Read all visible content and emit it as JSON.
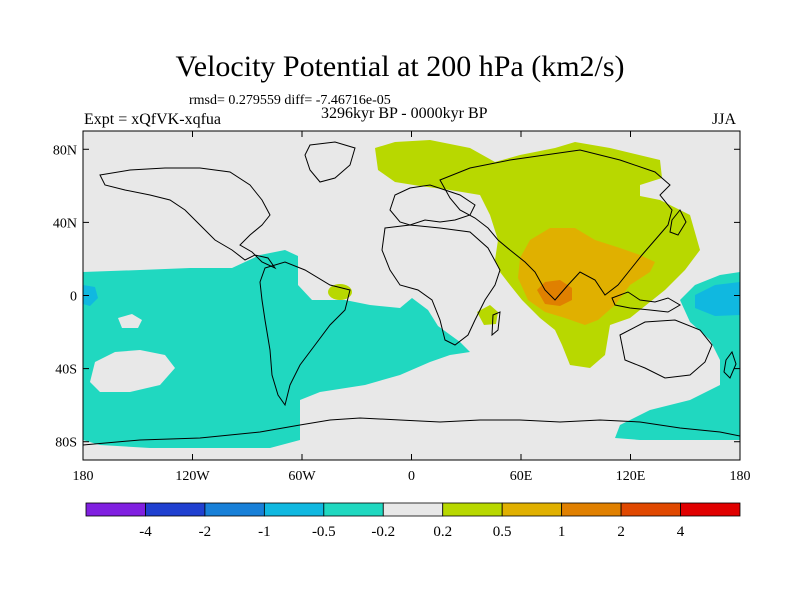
{
  "title": "Velocity Potential at 200 hPa (km2/s)",
  "stats": "rmsd= 0.279559 diff= -7.46716e-05",
  "experiment": "Expt = xQfVK-xqfua",
  "period": "3296kyr BP - 0000kyr BP",
  "season": "JJA",
  "map": {
    "lon_range": [
      -180,
      180
    ],
    "lat_range": [
      -90,
      90
    ],
    "x_ticks": [
      {
        "value": -180,
        "label": "180"
      },
      {
        "value": -120,
        "label": "120W"
      },
      {
        "value": -60,
        "label": "60W"
      },
      {
        "value": 0,
        "label": "0"
      },
      {
        "value": 60,
        "label": "60E"
      },
      {
        "value": 120,
        "label": "120E"
      },
      {
        "value": 180,
        "label": "180"
      }
    ],
    "y_ticks": [
      {
        "value": 80,
        "label": "80N"
      },
      {
        "value": 40,
        "label": "40N"
      },
      {
        "value": 0,
        "label": "0"
      },
      {
        "value": -40,
        "label": "40S"
      },
      {
        "value": -80,
        "label": "80S"
      }
    ],
    "background_color": "#e8e8e8"
  },
  "colorbar": {
    "labels": [
      "-4",
      "-2",
      "-1",
      "-0.5",
      "-0.2",
      "0.2",
      "0.5",
      "1",
      "2",
      "4"
    ],
    "colors": [
      "#8020e0",
      "#2040d0",
      "#1880d8",
      "#10b8e0",
      "#20d8c0",
      "#e8e8e8",
      "#b8d800",
      "#e0b000",
      "#e08000",
      "#e04800",
      "#e00000"
    ]
  }
}
